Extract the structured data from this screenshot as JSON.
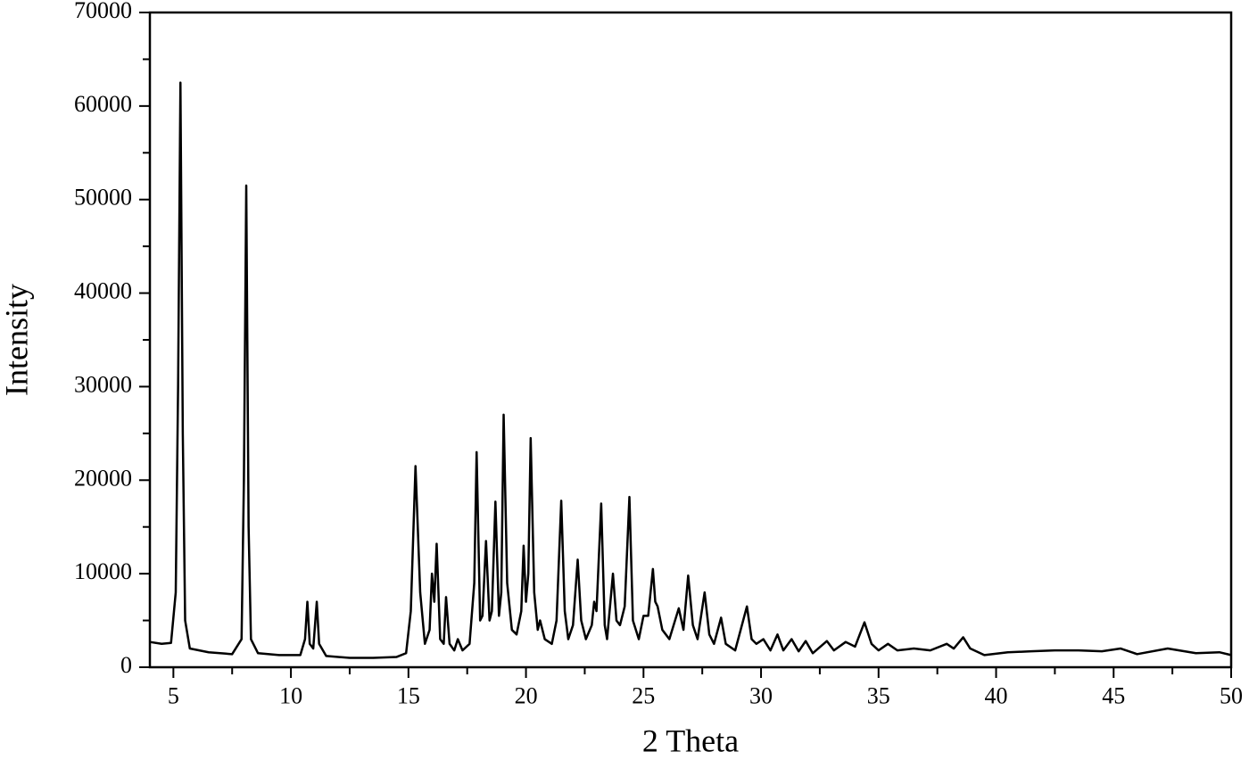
{
  "chart_data": {
    "type": "line",
    "x_label": "2 Theta",
    "y_label": "Intensity",
    "color": "#000000",
    "xlim": [
      4,
      50
    ],
    "ylim": [
      0,
      70000
    ],
    "xticks": [
      5,
      10,
      15,
      20,
      25,
      30,
      35,
      40,
      45,
      50
    ],
    "xminorticks": [
      7.5,
      12.5,
      17.5,
      22.5,
      27.5,
      32.5,
      37.5,
      42.5,
      47.5
    ],
    "yticks": [
      0,
      10000,
      20000,
      30000,
      40000,
      50000,
      60000,
      70000
    ],
    "yminorticks": [
      5000,
      15000,
      25000,
      35000,
      45000,
      55000,
      65000
    ],
    "x": [
      4.0,
      4.5,
      4.9,
      5.1,
      5.2,
      5.3,
      5.4,
      5.5,
      5.7,
      6.5,
      7.5,
      7.9,
      8.0,
      8.1,
      8.2,
      8.3,
      8.6,
      9.5,
      10.4,
      10.6,
      10.7,
      10.8,
      10.95,
      11.1,
      11.2,
      11.5,
      12.5,
      13.5,
      14.5,
      14.9,
      15.1,
      15.3,
      15.5,
      15.7,
      15.9,
      16.0,
      16.1,
      16.2,
      16.35,
      16.5,
      16.6,
      16.75,
      16.95,
      17.1,
      17.3,
      17.6,
      17.8,
      17.9,
      18.05,
      18.15,
      18.3,
      18.45,
      18.55,
      18.7,
      18.85,
      18.95,
      19.05,
      19.2,
      19.4,
      19.6,
      19.8,
      19.9,
      20.0,
      20.1,
      20.2,
      20.35,
      20.5,
      20.6,
      20.8,
      21.1,
      21.3,
      21.5,
      21.65,
      21.8,
      22.0,
      22.2,
      22.35,
      22.55,
      22.8,
      22.9,
      23.0,
      23.2,
      23.35,
      23.45,
      23.7,
      23.85,
      24.0,
      24.2,
      24.4,
      24.55,
      24.8,
      25.0,
      25.2,
      25.4,
      25.5,
      25.6,
      25.8,
      26.1,
      26.5,
      26.7,
      26.9,
      27.1,
      27.3,
      27.6,
      27.8,
      28.0,
      28.3,
      28.5,
      28.9,
      29.4,
      29.6,
      29.8,
      30.1,
      30.4,
      30.7,
      30.95,
      31.3,
      31.6,
      31.9,
      32.2,
      32.8,
      33.1,
      33.6,
      34.0,
      34.4,
      34.7,
      35.0,
      35.4,
      35.8,
      36.5,
      37.2,
      37.9,
      38.2,
      38.6,
      38.9,
      39.5,
      40.5,
      41.5,
      42.5,
      43.5,
      44.5,
      45.3,
      46,
      47.3,
      48.5,
      49.5,
      50
    ],
    "values": [
      2700,
      2500,
      2600,
      8000,
      30000,
      62500,
      25000,
      5000,
      2000,
      1600,
      1400,
      3000,
      20000,
      51500,
      15000,
      3000,
      1500,
      1300,
      1300,
      3000,
      7000,
      2500,
      2000,
      7000,
      2500,
      1200,
      1000,
      1000,
      1100,
      1500,
      6000,
      21500,
      8000,
      2500,
      4000,
      10000,
      7000,
      13200,
      3000,
      2500,
      7500,
      2500,
      1800,
      3000,
      1800,
      2500,
      9000,
      23000,
      5000,
      5500,
      13500,
      5000,
      6000,
      17700,
      5500,
      8000,
      27000,
      9000,
      4000,
      3500,
      6000,
      13000,
      7000,
      10000,
      24500,
      8000,
      4000,
      5000,
      3000,
      2500,
      5000,
      17800,
      6000,
      3000,
      4500,
      11500,
      5000,
      3000,
      4500,
      7000,
      6000,
      17500,
      4500,
      3000,
      10000,
      5000,
      4500,
      6500,
      18200,
      5000,
      3000,
      5500,
      5500,
      10500,
      7000,
      6500,
      4000,
      3000,
      6300,
      4000,
      9800,
      4500,
      3000,
      8000,
      3500,
      2500,
      5300,
      2500,
      1800,
      6500,
      3000,
      2500,
      3000,
      1800,
      3500,
      1800,
      3000,
      1700,
      2800,
      1500,
      2800,
      1800,
      2700,
      2200,
      4800,
      2500,
      1800,
      2500,
      1800,
      2000,
      1800,
      2500,
      2000,
      3200,
      2000,
      1300,
      1600,
      1700,
      1800,
      1800,
      1700,
      2000,
      1400,
      2000,
      1500,
      1600,
      1300
    ]
  }
}
